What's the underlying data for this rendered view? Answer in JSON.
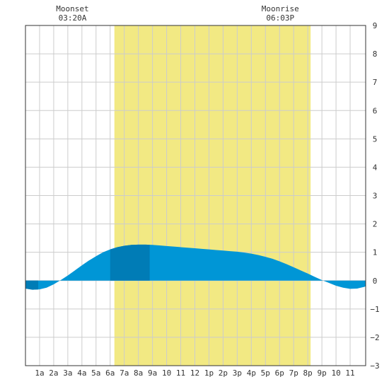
{
  "chart_data": {
    "type": "area",
    "title": "",
    "xlabel": "",
    "ylabel": "",
    "x_range_hours": [
      0,
      24.1
    ],
    "ylim": [
      -3,
      9
    ],
    "y_ticks": [
      -3,
      -2,
      -1,
      0,
      1,
      2,
      3,
      4,
      5,
      6,
      7,
      8,
      9
    ],
    "x_tick_labels": [
      "1a",
      "2a",
      "3a",
      "4a",
      "5a",
      "6a",
      "7a",
      "8a",
      "9a",
      "10",
      "11",
      "12",
      "1p",
      "2p",
      "3p",
      "4p",
      "5p",
      "6p",
      "7p",
      "8p",
      "9p",
      "10",
      "11"
    ],
    "grid": true,
    "daylight_hours": [
      6.3,
      20.2
    ],
    "moon_events": [
      {
        "name": "Moonset",
        "time": "03:20A",
        "hour": 3.33
      },
      {
        "name": "Moonrise",
        "time": "06:03P",
        "hour": 18.05
      }
    ],
    "highlight_band_hours": [
      6.0,
      8.8
    ],
    "series": [
      {
        "x": [
          0,
          0.5,
          1,
          1.5,
          2,
          2.5,
          3,
          3.5,
          4,
          4.5,
          5,
          5.5,
          6,
          6.5,
          7,
          7.5,
          8,
          8.5,
          9,
          9.5,
          10,
          10.5,
          11,
          11.5,
          12,
          12.5,
          13,
          13.5,
          14,
          14.5,
          15,
          15.5,
          16,
          16.5,
          17,
          17.5,
          18,
          18.5,
          19,
          19.5,
          20,
          20.5,
          21,
          21.5,
          22,
          22.5,
          23,
          23.5,
          24,
          24.1
        ],
        "y": [
          -0.28,
          -0.32,
          -0.31,
          -0.25,
          -0.13,
          0.02,
          0.18,
          0.36,
          0.54,
          0.71,
          0.86,
          1.0,
          1.1,
          1.18,
          1.23,
          1.26,
          1.27,
          1.27,
          1.26,
          1.24,
          1.22,
          1.2,
          1.18,
          1.16,
          1.14,
          1.12,
          1.1,
          1.08,
          1.06,
          1.04,
          1.02,
          0.99,
          0.95,
          0.9,
          0.84,
          0.77,
          0.68,
          0.58,
          0.47,
          0.36,
          0.25,
          0.13,
          0.02,
          -0.08,
          -0.18,
          -0.25,
          -0.29,
          -0.28,
          -0.22,
          -0.2
        ]
      }
    ],
    "colors": {
      "tide_fill": "#0096d6",
      "tide_highlight": "#007cb6",
      "daylight": "#f2e983",
      "grid": "#cccccc",
      "axis": "#333333"
    }
  }
}
